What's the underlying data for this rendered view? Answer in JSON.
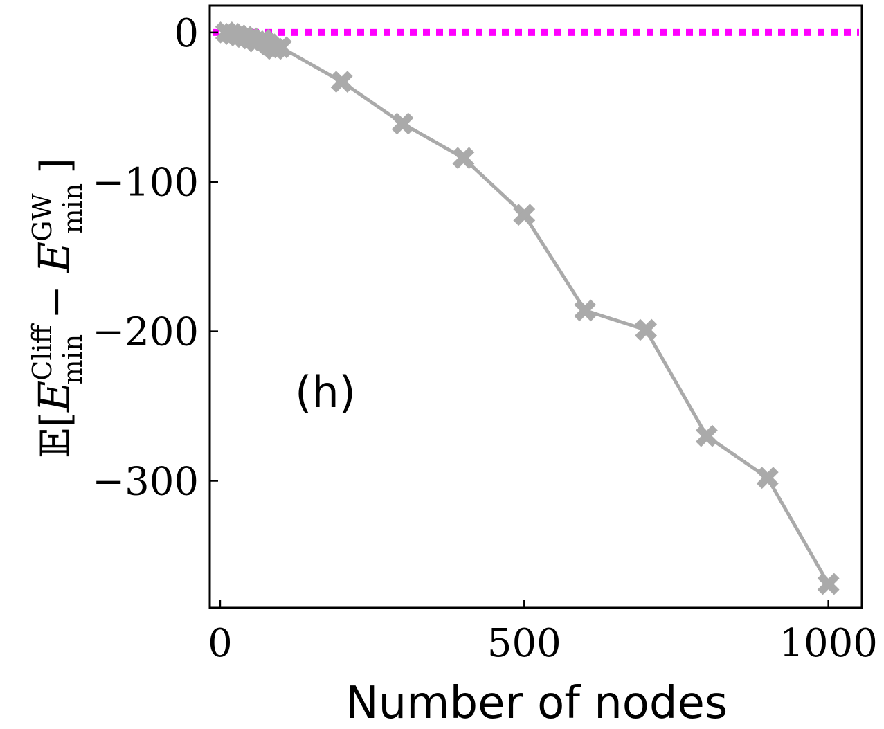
{
  "chart_data": {
    "type": "line",
    "title": "",
    "panel_label": "(h)",
    "xlabel": "Number of nodes",
    "ylabel": {
      "prefix": "𝔼[",
      "term1_base": "E",
      "term1_sup": "Cliff",
      "term1_sub": "min",
      "minus": "−",
      "term2_base": "E",
      "term2_sup": "GW",
      "term2_sub": "min",
      "suffix": "]"
    },
    "xlim": [
      -17,
      1055
    ],
    "ylim": [
      -385,
      18
    ],
    "xticks": [
      0,
      500,
      1000
    ],
    "xtick_labels": [
      "0",
      "500",
      "1000"
    ],
    "yticks": [
      0,
      -100,
      -200,
      -300
    ],
    "ytick_labels": [
      "0",
      "−100",
      "−200",
      "−300"
    ],
    "grid": false,
    "series": [
      {
        "color": "#aaaaaa",
        "marker": "X",
        "x": [
          10,
          20,
          30,
          40,
          50,
          60,
          70,
          80,
          90,
          100,
          200,
          300,
          400,
          500,
          600,
          700,
          800,
          900,
          1000
        ],
        "y": [
          0,
          -1,
          -2,
          -3,
          -4,
          -6,
          -5,
          -8,
          -11,
          -10,
          -33,
          -61,
          -84,
          -122,
          -186,
          -199,
          -270,
          -298,
          -369
        ]
      }
    ],
    "reference_line": {
      "y": 0,
      "color": "#ff00ff",
      "style": "dotted"
    }
  }
}
